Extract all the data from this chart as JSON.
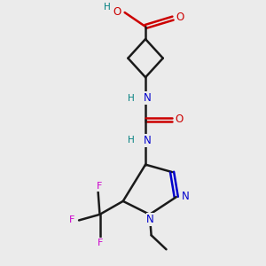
{
  "background_color": "#ebebeb",
  "bond_color": "#1a1a1a",
  "oxygen_color": "#cc0000",
  "nitrogen_color": "#0000cc",
  "fluorine_color": "#cc00cc",
  "hydrogen_color": "#008080",
  "figsize": [
    3.0,
    3.0
  ],
  "dpi": 100,
  "xlim": [
    0,
    3
  ],
  "ylim": [
    0,
    3.2
  ]
}
